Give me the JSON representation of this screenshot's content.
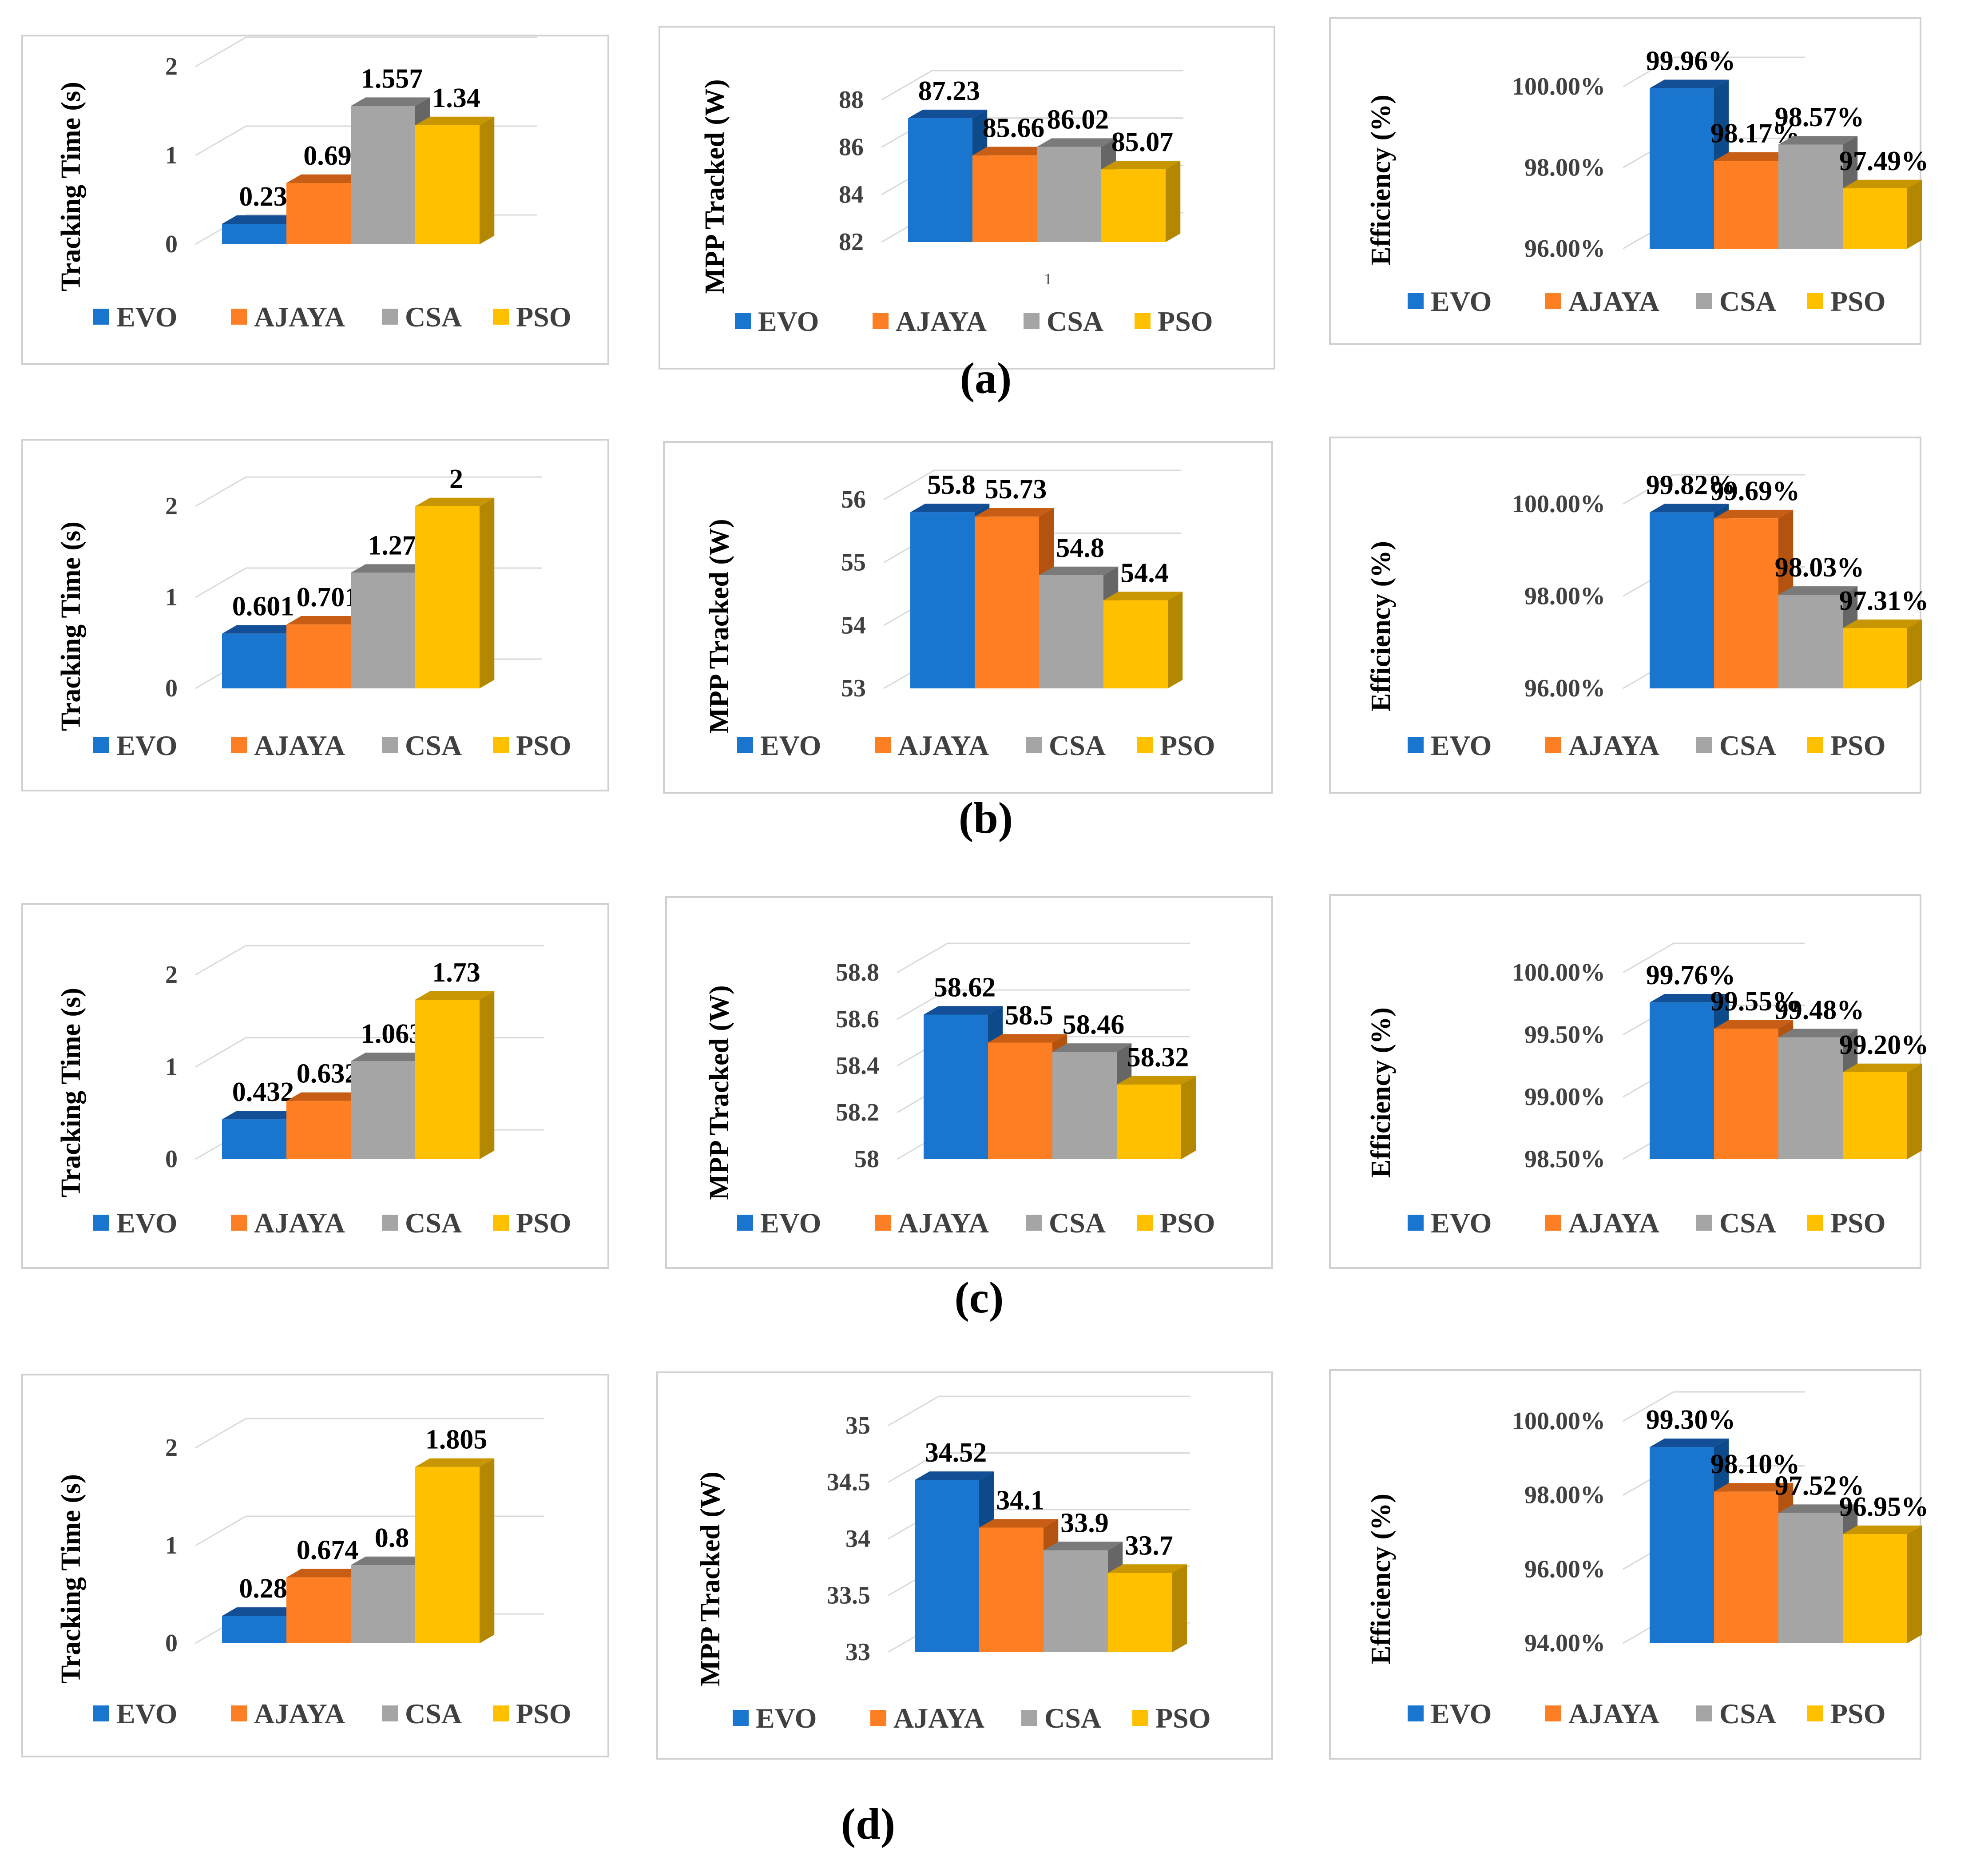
{
  "figure": {
    "colors": {
      "EVO": {
        "front": "#1a75cf",
        "side": "#0d4a8a",
        "top": "#134f96"
      },
      "AJAYA": {
        "front": "#fd7e23",
        "side": "#b4520f",
        "top": "#c85e15"
      },
      "CSA": {
        "front": "#a5a5a5",
        "side": "#666666",
        "top": "#7a7a7a"
      },
      "PSO": {
        "front": "#ffc000",
        "side": "#b38800",
        "top": "#c89600"
      }
    },
    "captions": [
      "(a)",
      "(b)",
      "(c)",
      "(d)"
    ]
  },
  "chart_data": [
    {
      "id": "a1",
      "type": "bar",
      "ylabel": "Tracking Time  (s)",
      "categories": [
        "EVO",
        "AJAYA",
        "CSA",
        "PSO"
      ],
      "values": [
        0.23,
        0.69,
        1.557,
        1.34
      ],
      "value_labels": [
        "0.23",
        "0.69",
        "1.557",
        "1.34"
      ],
      "ylim": [
        0,
        2
      ],
      "yticks": [
        "0",
        "1",
        "2"
      ],
      "legend": [
        "EVO",
        "AJAYA",
        "CSA",
        "PSO"
      ],
      "xtick": ""
    },
    {
      "id": "a2",
      "type": "bar",
      "ylabel": "MPP Tracked  (W)",
      "categories": [
        "EVO",
        "AJAYA",
        "CSA",
        "PSO"
      ],
      "values": [
        87.23,
        85.66,
        86.02,
        85.07
      ],
      "value_labels": [
        "87.23",
        "85.66",
        "86.02",
        "85.07"
      ],
      "ylim": [
        82,
        88
      ],
      "yticks": [
        "82",
        "84",
        "86",
        "88"
      ],
      "legend": [
        "EVO",
        "AJAYA",
        "CSA",
        "PSO"
      ],
      "xtick": "1"
    },
    {
      "id": "a3",
      "type": "bar",
      "ylabel": "Efficiency (%)",
      "categories": [
        "EVO",
        "AJAYA",
        "CSA",
        "PSO"
      ],
      "values": [
        99.96,
        98.17,
        98.57,
        97.49
      ],
      "value_labels": [
        "99.96%",
        "98.17%",
        "98.57%",
        "97.49%"
      ],
      "ylim": [
        96,
        100
      ],
      "yticks": [
        "96.00%",
        "98.00%",
        "100.00%"
      ],
      "legend": [
        "EVO",
        "AJAYA",
        "CSA",
        "PSO"
      ],
      "xtick": ""
    },
    {
      "id": "b1",
      "type": "bar",
      "ylabel": "Tracking Time  (s)",
      "categories": [
        "EVO",
        "AJAYA",
        "CSA",
        "PSO"
      ],
      "values": [
        0.601,
        0.701,
        1.27,
        2
      ],
      "value_labels": [
        "0.601",
        "0.701",
        "1.27",
        "2"
      ],
      "ylim": [
        0,
        2
      ],
      "yticks": [
        "0",
        "1",
        "2"
      ],
      "legend": [
        "EVO",
        "AJAYA",
        "CSA",
        "PSO"
      ],
      "xtick": ""
    },
    {
      "id": "b2",
      "type": "bar",
      "ylabel": "MPP Tracked (W)",
      "categories": [
        "EVO",
        "AJAYA",
        "CSA",
        "PSO"
      ],
      "values": [
        55.8,
        55.73,
        54.8,
        54.4
      ],
      "value_labels": [
        "55.8",
        "55.73",
        "54.8",
        "54.4"
      ],
      "ylim": [
        53,
        56
      ],
      "yticks": [
        "53",
        "54",
        "55",
        "56"
      ],
      "legend": [
        "EVO",
        "AJAYA",
        "CSA",
        "PSO"
      ],
      "xtick": ""
    },
    {
      "id": "b3",
      "type": "bar",
      "ylabel": "Efficiency (%)",
      "categories": [
        "EVO",
        "AJAYA",
        "CSA",
        "PSO"
      ],
      "values": [
        99.82,
        99.69,
        98.03,
        97.31
      ],
      "value_labels": [
        "99.82%",
        "99.69%",
        "98.03%",
        "97.31%"
      ],
      "ylim": [
        96,
        100
      ],
      "yticks": [
        "96.00%",
        "98.00%",
        "100.00%"
      ],
      "legend": [
        "EVO",
        "AJAYA",
        "CSA",
        "PSO"
      ],
      "xtick": ""
    },
    {
      "id": "c1",
      "type": "bar",
      "ylabel": "Tracking Time  (s)",
      "categories": [
        "EVO",
        "AJAYA",
        "CSA",
        "PSO"
      ],
      "values": [
        0.432,
        0.632,
        1.063,
        1.73
      ],
      "value_labels": [
        "0.432",
        "0.632",
        "1.063",
        "1.73"
      ],
      "ylim": [
        0,
        2
      ],
      "yticks": [
        "0",
        "1",
        "2"
      ],
      "legend": [
        "EVO",
        "AJAYA",
        "CSA",
        "PSO"
      ],
      "xtick": ""
    },
    {
      "id": "c2",
      "type": "bar",
      "ylabel": "MPP Tracked (W)",
      "categories": [
        "EVO",
        "AJAYA",
        "CSA",
        "PSO"
      ],
      "values": [
        58.62,
        58.5,
        58.46,
        58.32
      ],
      "value_labels": [
        "58.62",
        "58.5",
        "58.46",
        "58.32"
      ],
      "ylim": [
        58,
        58.8
      ],
      "yticks": [
        "58",
        "58.2",
        "58.4",
        "58.6",
        "58.8"
      ],
      "legend": [
        "EVO",
        "AJAYA",
        "CSA",
        "PSO"
      ],
      "xtick": ""
    },
    {
      "id": "c3",
      "type": "bar",
      "ylabel": "Efficiency  (%)",
      "categories": [
        "EVO",
        "AJAYA",
        "CSA",
        "PSO"
      ],
      "values": [
        99.76,
        99.55,
        99.48,
        99.2
      ],
      "value_labels": [
        "99.76%",
        "99.55%",
        "99.48%",
        "99.20%"
      ],
      "ylim": [
        98.5,
        100
      ],
      "yticks": [
        "98.50%",
        "99.00%",
        "99.50%",
        "100.00%"
      ],
      "legend": [
        "EVO",
        "AJAYA",
        "CSA",
        "PSO"
      ],
      "xtick": ""
    },
    {
      "id": "d1",
      "type": "bar",
      "ylabel": "Tracking Time  (s)",
      "categories": [
        "EVO",
        "AJAYA",
        "CSA",
        "PSO"
      ],
      "values": [
        0.28,
        0.674,
        0.8,
        1.805
      ],
      "value_labels": [
        "0.28",
        "0.674",
        "0.8",
        "1.805"
      ],
      "ylim": [
        0,
        2
      ],
      "yticks": [
        "0",
        "1",
        "2"
      ],
      "legend": [
        "EVO",
        "AJAYA",
        "CSA",
        "PSO"
      ],
      "xtick": ""
    },
    {
      "id": "d2",
      "type": "bar",
      "ylabel": "MPP Tracked (W)",
      "categories": [
        "EVO",
        "AJAYA",
        "CSA",
        "PSO"
      ],
      "values": [
        34.52,
        34.1,
        33.9,
        33.7
      ],
      "value_labels": [
        "34.52",
        "34.1",
        "33.9",
        "33.7"
      ],
      "ylim": [
        33,
        35
      ],
      "yticks": [
        "33",
        "33.5",
        "34",
        "34.5",
        "35"
      ],
      "legend": [
        "EVO",
        "AJAYA",
        "CSA",
        "PSO"
      ],
      "xtick": ""
    },
    {
      "id": "d3",
      "type": "bar",
      "ylabel": "Efficiency (%)",
      "categories": [
        "EVO",
        "AJAYA",
        "CSA",
        "PSO"
      ],
      "values": [
        99.3,
        98.1,
        97.52,
        96.95
      ],
      "value_labels": [
        "99.30%",
        "98.10%",
        "97.52%",
        "96.95%"
      ],
      "ylim": [
        94,
        100
      ],
      "yticks": [
        "94.00%",
        "96.00%",
        "98.00%",
        "100.00%"
      ],
      "legend": [
        "EVO",
        "AJAYA",
        "CSA",
        "PSO"
      ],
      "xtick": ""
    }
  ]
}
